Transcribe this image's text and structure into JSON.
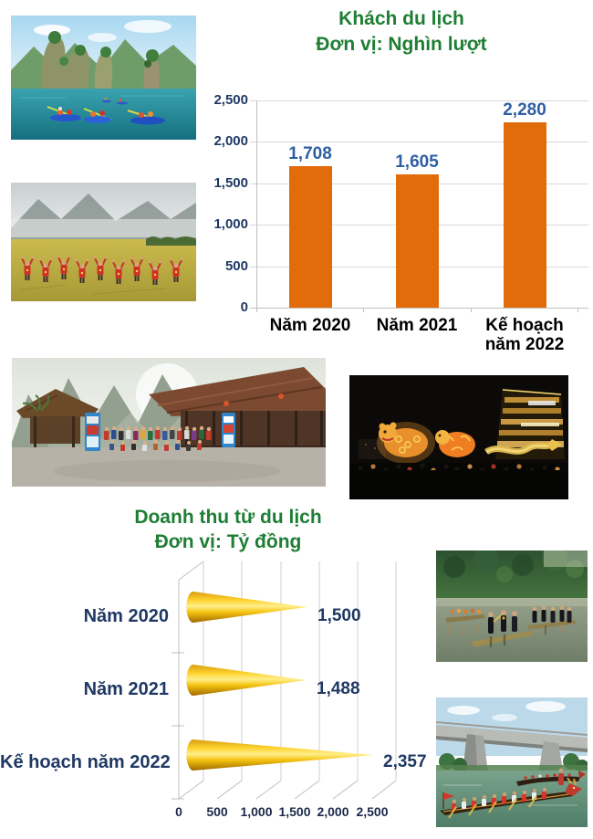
{
  "chart_data": [
    {
      "type": "bar",
      "title": "Khách du lịch",
      "subtitle": "Đơn vị: Nghìn lượt",
      "categories": [
        "Năm 2020",
        "Năm 2021",
        "Kế hoạch năm 2022"
      ],
      "values": [
        1708,
        1605,
        2280
      ],
      "value_labels": [
        "1,708",
        "1,605",
        "2,280"
      ],
      "ylim": [
        0,
        2500
      ],
      "yticks": [
        0,
        500,
        1000,
        1500,
        2000,
        2500
      ],
      "ytick_labels": [
        "0",
        "500",
        "1,000",
        "1,500",
        "2,000",
        "2,500"
      ],
      "bar_color": "#E36C0A",
      "label_color": "#2E5FA3",
      "grid": true,
      "legend": "none"
    },
    {
      "type": "cone-horizontal",
      "title": "Doanh thu từ du lịch",
      "subtitle": "Đơn vị: Tỷ đồng",
      "categories": [
        "Năm 2020",
        "Năm 2021",
        "Kế hoạch năm 2022"
      ],
      "values": [
        1500,
        1488,
        2357
      ],
      "value_labels": [
        "1,500",
        "1,488",
        "2,357"
      ],
      "xlim": [
        0,
        2500
      ],
      "xticks": [
        0,
        500,
        1000,
        1500,
        2000,
        2500
      ],
      "xtick_labels": [
        "0",
        "500",
        "1,000",
        "1,500",
        "2,000",
        "2,500"
      ],
      "cone_color": "#FFC000",
      "label_color": "#1F3864",
      "grid": true,
      "legend": "none"
    }
  ],
  "colors": {
    "title_green": "#1E7E34",
    "bar_orange": "#E36C0A",
    "bar_value_blue": "#2E5FA3",
    "axis_navy": "#1F3864",
    "cone_gold": "#FFC000",
    "grid_gray": "#D9D9D9"
  },
  "images": [
    {
      "name": "kayaking-lake",
      "description": "Tourists kayaking on a lake among limestone karst cliffs"
    },
    {
      "name": "rice-field-group",
      "description": "People in red flag shirts raising arms in a golden rice field"
    },
    {
      "name": "stilt-house-group",
      "description": "Tour group posing in front of wooden stilt houses beneath karst mountains"
    },
    {
      "name": "night-lantern-festival",
      "description": "Night festival with giant glowing animal lanterns and a crowd"
    },
    {
      "name": "bamboo-raft-performance",
      "description": "Performers in traditional dress standing on bamboo rafts on a river"
    },
    {
      "name": "dragon-boat-race",
      "description": "Dragon boat racing on a river below a concrete bridge"
    }
  ]
}
